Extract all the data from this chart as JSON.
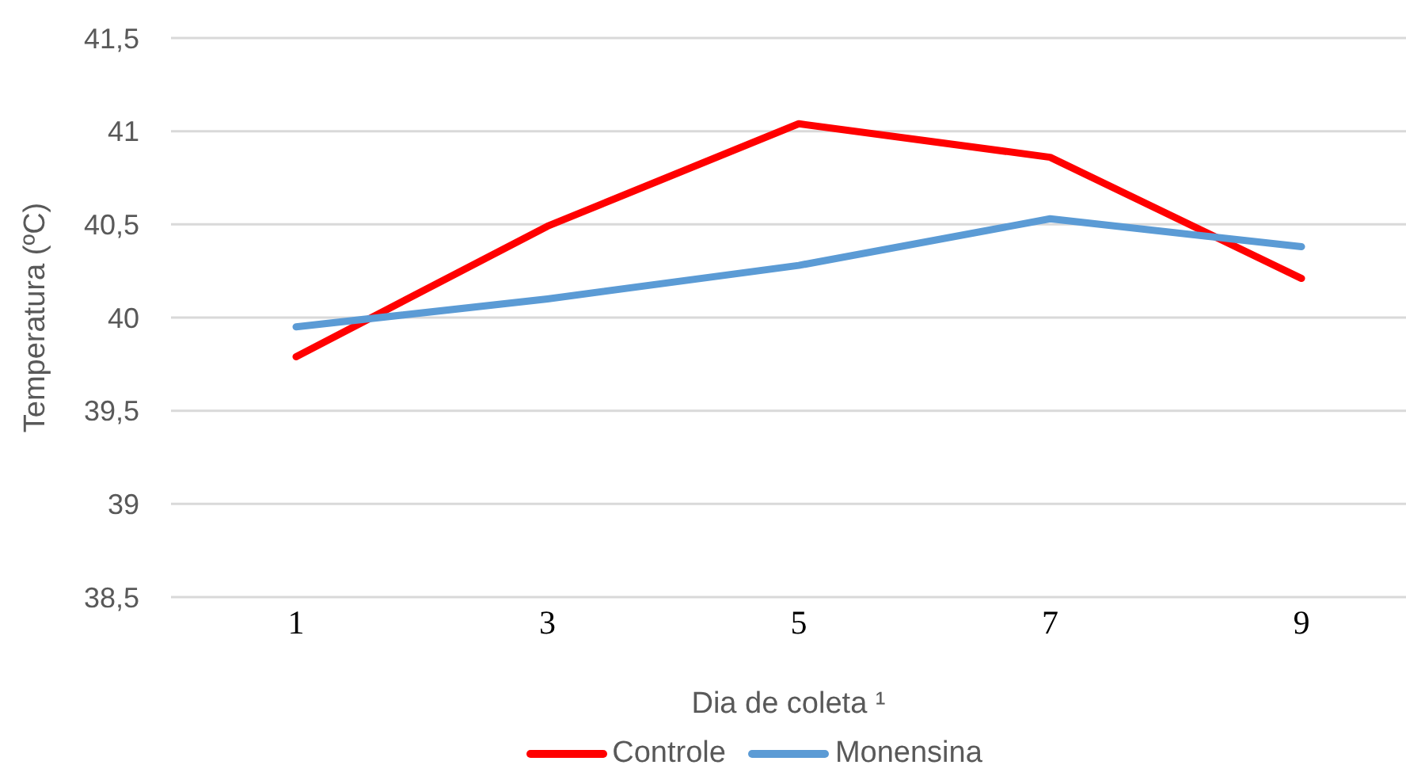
{
  "chart_data": {
    "type": "line",
    "xlabel": "Dia de coleta ¹",
    "ylabel": "Temperatura (ºC)",
    "categories": [
      "1",
      "3",
      "5",
      "7",
      "9"
    ],
    "series": [
      {
        "name": "Controle",
        "color": "#ff0000",
        "values": [
          39.79,
          40.49,
          41.04,
          40.86,
          40.21
        ]
      },
      {
        "name": "Monensina",
        "color": "#5b9bd5",
        "values": [
          39.95,
          40.1,
          40.28,
          40.53,
          40.38
        ]
      }
    ],
    "ylim": [
      38.5,
      41.5
    ],
    "yticks": [
      {
        "value": 38.5,
        "label": "38,5"
      },
      39,
      {
        "value": 39.5,
        "label": "39,5"
      },
      40,
      {
        "value": 40.5,
        "label": "40,5"
      },
      41,
      {
        "value": 41.5,
        "label": "41,5"
      }
    ],
    "grid": "y",
    "legend": "bottom",
    "marker": "none",
    "line_style": "solid"
  }
}
